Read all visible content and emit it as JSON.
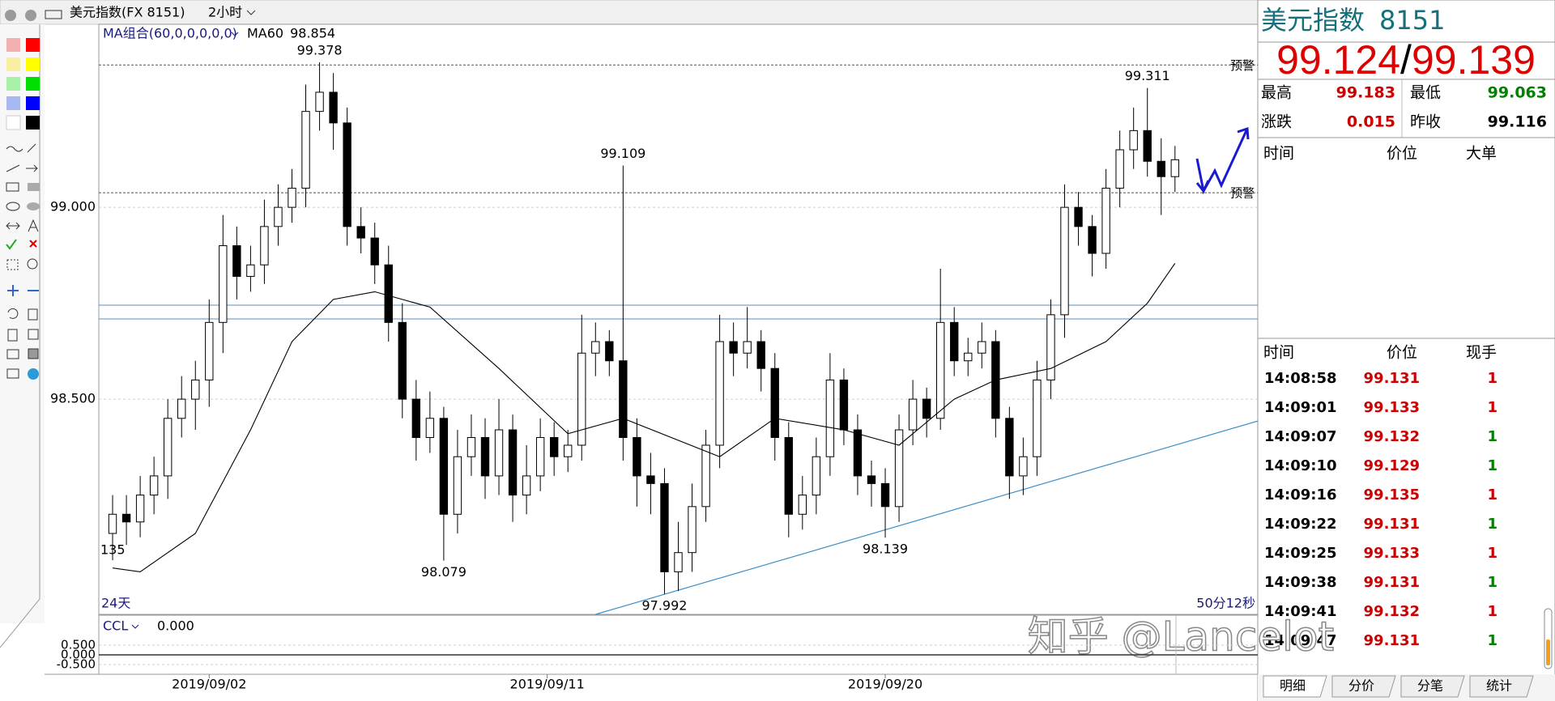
{
  "window": {
    "title": "美元指数(FX 8151)",
    "period": "2小时"
  },
  "chart_data": {
    "type": "candlestick",
    "indicator": "MA组合(60,0,0,0,0,0)",
    "up_color": "#000000",
    "down_color": "#000000",
    "open": [
      98.15,
      98.2,
      98.18,
      98.25,
      98.3,
      98.45,
      98.5,
      98.55,
      98.7,
      98.9,
      98.82,
      98.85,
      98.95,
      99.0,
      99.05,
      99.25,
      99.3,
      99.22,
      98.95,
      98.92,
      98.85,
      98.7,
      98.5,
      98.4,
      98.45,
      98.2,
      98.35,
      98.4,
      98.3,
      98.42,
      98.25,
      98.3,
      98.4,
      98.35,
      98.38,
      98.62,
      98.65,
      98.6,
      98.4,
      98.3,
      98.28,
      98.05,
      98.1,
      98.22,
      98.38,
      98.65,
      98.62,
      98.65,
      98.58,
      98.4,
      98.2,
      98.25,
      98.35,
      98.55,
      98.42,
      98.3,
      98.28,
      98.22,
      98.42,
      98.5,
      98.45,
      98.7,
      98.6,
      98.62,
      98.65,
      98.45,
      98.3,
      98.35,
      98.55,
      98.72,
      99.0,
      98.95,
      98.88,
      99.05,
      99.15,
      99.2,
      99.12,
      99.08
    ],
    "high": [
      98.25,
      98.25,
      98.3,
      98.35,
      98.5,
      98.56,
      98.6,
      98.76,
      98.98,
      98.95,
      98.9,
      99.02,
      99.06,
      99.1,
      99.32,
      99.378,
      99.35,
      99.26,
      99.0,
      98.96,
      98.9,
      98.75,
      98.55,
      98.52,
      98.48,
      98.42,
      98.46,
      98.45,
      98.5,
      98.46,
      98.38,
      98.45,
      98.44,
      98.42,
      98.72,
      98.7,
      98.68,
      99.109,
      98.45,
      98.36,
      98.32,
      98.18,
      98.28,
      98.42,
      98.72,
      98.7,
      98.74,
      98.68,
      98.62,
      98.44,
      98.3,
      98.4,
      98.62,
      98.58,
      98.46,
      98.34,
      98.32,
      98.46,
      98.55,
      98.53,
      98.84,
      98.74,
      98.66,
      98.7,
      98.68,
      98.48,
      98.4,
      98.6,
      98.76,
      99.06,
      99.04,
      98.98,
      99.1,
      99.2,
      99.26,
      99.311,
      99.18,
      99.16
    ],
    "low": [
      98.08,
      98.12,
      98.14,
      98.2,
      98.24,
      98.4,
      98.42,
      98.48,
      98.62,
      98.76,
      98.78,
      98.8,
      98.9,
      98.96,
      99.0,
      99.2,
      99.15,
      98.9,
      98.88,
      98.8,
      98.65,
      98.45,
      98.34,
      98.36,
      98.079,
      98.15,
      98.3,
      98.24,
      98.25,
      98.18,
      98.2,
      98.26,
      98.3,
      98.31,
      98.34,
      98.56,
      98.56,
      98.34,
      98.22,
      98.2,
      97.992,
      98.0,
      98.05,
      98.18,
      98.32,
      98.56,
      98.58,
      98.52,
      98.34,
      98.14,
      98.16,
      98.2,
      98.3,
      98.38,
      98.25,
      98.22,
      98.139,
      98.18,
      98.38,
      98.4,
      98.42,
      98.56,
      98.56,
      98.58,
      98.4,
      98.24,
      98.25,
      98.3,
      98.5,
      98.66,
      98.9,
      98.82,
      98.84,
      99.0,
      99.1,
      99.08,
      98.98,
      99.04
    ],
    "close": [
      98.2,
      98.18,
      98.25,
      98.3,
      98.45,
      98.5,
      98.55,
      98.7,
      98.9,
      98.82,
      98.85,
      98.95,
      99.0,
      99.05,
      99.25,
      99.3,
      99.22,
      98.95,
      98.92,
      98.85,
      98.7,
      98.5,
      98.4,
      98.45,
      98.2,
      98.35,
      98.4,
      98.3,
      98.42,
      98.25,
      98.3,
      98.4,
      98.35,
      98.38,
      98.62,
      98.65,
      98.6,
      98.4,
      98.3,
      98.28,
      98.05,
      98.1,
      98.22,
      98.38,
      98.65,
      98.62,
      98.65,
      98.58,
      98.4,
      98.2,
      98.25,
      98.35,
      98.55,
      98.42,
      98.3,
      98.28,
      98.22,
      98.42,
      98.5,
      98.45,
      98.7,
      98.6,
      98.62,
      98.65,
      98.45,
      98.3,
      98.35,
      98.55,
      98.72,
      99.0,
      98.95,
      98.88,
      99.05,
      99.15,
      99.2,
      99.12,
      99.08,
      99.124
    ],
    "ma": {
      "name": "MA60",
      "color": "#000000",
      "x": [
        0,
        2,
        6,
        10,
        13,
        16,
        19,
        23,
        28,
        33,
        37,
        44,
        48,
        53,
        57,
        61,
        64,
        68,
        72,
        75,
        77
      ],
      "values": [
        98.06,
        98.05,
        98.15,
        98.42,
        98.65,
        98.76,
        98.78,
        98.74,
        98.58,
        98.41,
        98.45,
        98.35,
        98.45,
        98.42,
        98.38,
        98.5,
        98.55,
        98.58,
        98.65,
        98.75,
        98.854
      ]
    },
    "xlim": [
      -1,
      83
    ],
    "ylim": [
      97.939,
      99.475
    ],
    "yticks": [
      {
        "value": 98.5,
        "label": "98.500"
      },
      {
        "value": 99,
        "label": "99.000"
      }
    ],
    "xticks": [
      {
        "value": 7,
        "label": "2019/09/02"
      },
      {
        "value": 31.5,
        "label": "2019/09/11"
      },
      {
        "value": 56,
        "label": "2019/09/20"
      }
    ],
    "grid": true,
    "annotations": [
      {
        "x": 15,
        "y": 99.378
      },
      {
        "x": 24,
        "y": 98.079
      },
      {
        "x": 37,
        "y": 99.109
      },
      {
        "x": 40,
        "y": 97.992
      },
      {
        "x": 56,
        "y": 98.139
      },
      {
        "x": 75,
        "y": 99.311
      }
    ],
    "partial_label": "135",
    "hlines": [
      {
        "value": 99.371,
        "label": "预警",
        "color": "#555555",
        "dashed": true
      },
      {
        "value": 99.038,
        "label": "预警",
        "color": "#555555",
        "dashed": true
      },
      {
        "value": 98.745,
        "color": "#5b8fc0",
        "dashed": false
      },
      {
        "value": 98.709,
        "color": "#5b8fc0",
        "dashed": false
      }
    ],
    "trendline": {
      "color": "#3d8fc8",
      "x": [
        35,
        83
      ],
      "values": [
        97.939,
        98.443
      ]
    },
    "span_label": "24天",
    "countdown": "50分12秒",
    "sub": {
      "name": "CCL",
      "value": 0,
      "value_label": "0.000",
      "ylim": [
        -1,
        1.96
      ],
      "yticks": [
        {
          "value": 0.5,
          "label": "0.500"
        },
        {
          "value": 0,
          "label": "0.000"
        },
        {
          "value": -0.5,
          "label": "-0.500"
        }
      ]
    }
  },
  "quote": {
    "name": "美元指数",
    "code": "8151",
    "bid": 99.124,
    "separator": "/",
    "ask": 99.139,
    "stats": [
      {
        "label": "最高",
        "value": 99.183,
        "color": "#cc0000"
      },
      {
        "label": "最低",
        "value": 99.063,
        "color": "#008000"
      },
      {
        "label": "涨跌",
        "value": 0.015,
        "color": "#cc0000"
      },
      {
        "label": "昨收",
        "value": 99.116,
        "color": "#000000"
      }
    ]
  },
  "big_orders": {
    "columns": [
      "时间",
      "价位",
      "大单"
    ]
  },
  "ticks": {
    "columns": [
      "时间",
      "价位",
      "现手"
    ],
    "rows": [
      [
        "14:08:58",
        99.131,
        1
      ],
      [
        "14:09:01",
        99.133,
        1
      ],
      [
        "14:09:07",
        99.132,
        1
      ],
      [
        "14:09:10",
        99.129,
        1
      ],
      [
        "14:09:16",
        99.135,
        1
      ],
      [
        "14:09:22",
        99.131,
        1
      ],
      [
        "14:09:25",
        99.133,
        1
      ],
      [
        "14:09:38",
        99.131,
        1
      ],
      [
        "14:09:41",
        99.132,
        1
      ],
      [
        "14:09:47",
        99.131,
        1
      ]
    ],
    "price_color": "#cc0000",
    "volume_colors": [
      "#cc0000",
      "#cc0000",
      "#008000",
      "#008000",
      "#cc0000",
      "#008000",
      "#cc0000",
      "#008000",
      "#cc0000",
      "#008000"
    ]
  },
  "tabs": [
    "明细",
    "分价",
    "分笔",
    "统计"
  ],
  "watermark": "知乎 @Lancelot"
}
